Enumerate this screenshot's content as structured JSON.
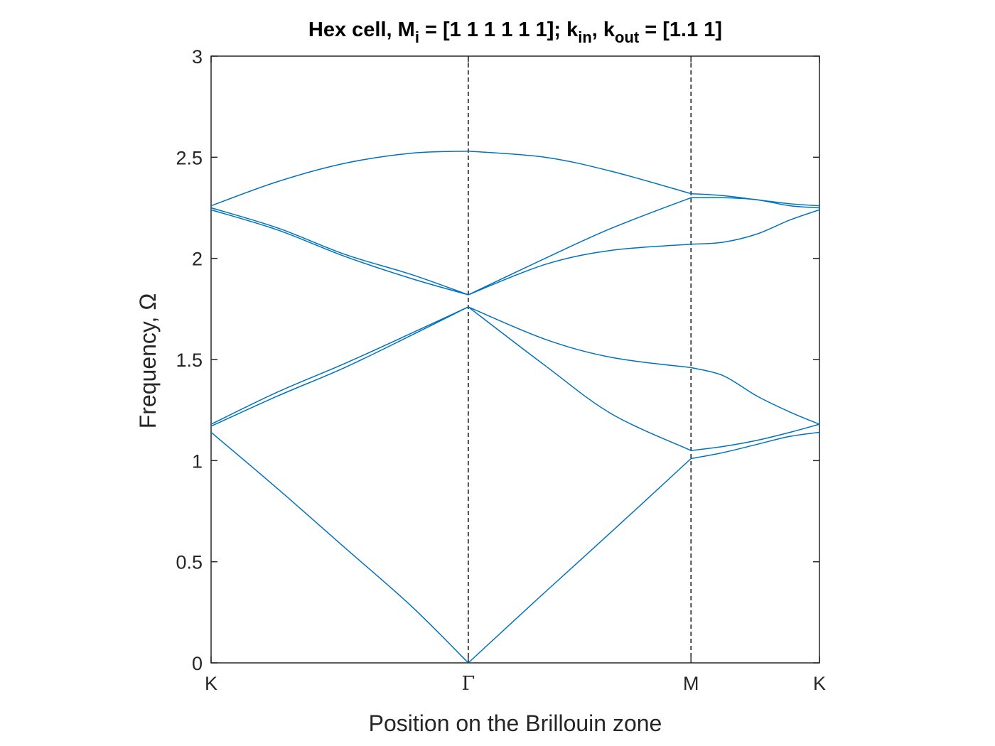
{
  "chart_data": {
    "type": "line",
    "title": {
      "parts": [
        {
          "text": "Hex cell, M",
          "sub": false
        },
        {
          "text": "i",
          "sub": true
        },
        {
          "text": " = [1 1 1 1 1 1]; k",
          "sub": false
        },
        {
          "text": "in",
          "sub": true
        },
        {
          "text": ", k",
          "sub": false
        },
        {
          "text": "out",
          "sub": true
        },
        {
          "text": " = [1.1 1]",
          "sub": false
        }
      ]
    },
    "xlabel": "Position on the Brillouin zone",
    "ylabel": "Frequency, Ω",
    "xlim": [
      0,
      2.732
    ],
    "ylim": [
      0,
      3
    ],
    "yticks": [
      0,
      0.5,
      1,
      1.5,
      2,
      2.5,
      3
    ],
    "ytick_labels": [
      "0",
      "0.5",
      "1",
      "1.5",
      "2",
      "2.5",
      "3"
    ],
    "xticks": [
      0,
      1.155,
      2.155,
      2.732
    ],
    "xtick_labels": [
      "K",
      "Γ",
      "M",
      "K"
    ],
    "symmetry_lines": [
      1.155,
      2.155
    ],
    "grid": false,
    "colors": {
      "series": "#0072BD",
      "axes": "#262626",
      "symmetry_lines": "#000000"
    },
    "series": [
      {
        "x": [
          0,
          0.3,
          0.6,
          0.9,
          1.155,
          1.5,
          1.8,
          2.155,
          2.3,
          2.45,
          2.6,
          2.732
        ],
        "y": [
          1.14,
          0.86,
          0.57,
          0.28,
          0.0,
          0.35,
          0.65,
          1.01,
          1.04,
          1.08,
          1.12,
          1.14
        ]
      },
      {
        "x": [
          0,
          0.3,
          0.6,
          0.9,
          1.155,
          1.5,
          1.8,
          2.155,
          2.3,
          2.45,
          2.6,
          2.732
        ],
        "y": [
          1.17,
          1.32,
          1.46,
          1.62,
          1.76,
          1.47,
          1.23,
          1.05,
          1.07,
          1.1,
          1.14,
          1.18
        ]
      },
      {
        "x": [
          0,
          0.3,
          0.6,
          0.9,
          1.155,
          1.5,
          1.8,
          2.155,
          2.3,
          2.45,
          2.6,
          2.732
        ],
        "y": [
          1.18,
          1.34,
          1.48,
          1.63,
          1.76,
          1.6,
          1.51,
          1.46,
          1.42,
          1.32,
          1.24,
          1.18
        ]
      },
      {
        "x": [
          0,
          0.3,
          0.6,
          0.9,
          1.155,
          1.5,
          1.8,
          2.155,
          2.3,
          2.45,
          2.6,
          2.732
        ],
        "y": [
          2.24,
          2.14,
          2.01,
          1.9,
          1.82,
          1.97,
          2.04,
          2.07,
          2.08,
          2.12,
          2.19,
          2.24
        ]
      },
      {
        "x": [
          0,
          0.3,
          0.6,
          0.9,
          1.155,
          1.5,
          1.8,
          2.155,
          2.3,
          2.45,
          2.6,
          2.732
        ],
        "y": [
          2.25,
          2.15,
          2.02,
          1.92,
          1.82,
          2.0,
          2.15,
          2.3,
          2.3,
          2.29,
          2.26,
          2.25
        ]
      },
      {
        "x": [
          0,
          0.3,
          0.6,
          0.9,
          1.155,
          1.5,
          1.8,
          2.155,
          2.3,
          2.45,
          2.6,
          2.732
        ],
        "y": [
          2.26,
          2.38,
          2.47,
          2.52,
          2.53,
          2.5,
          2.43,
          2.32,
          2.31,
          2.29,
          2.27,
          2.26
        ]
      }
    ]
  }
}
